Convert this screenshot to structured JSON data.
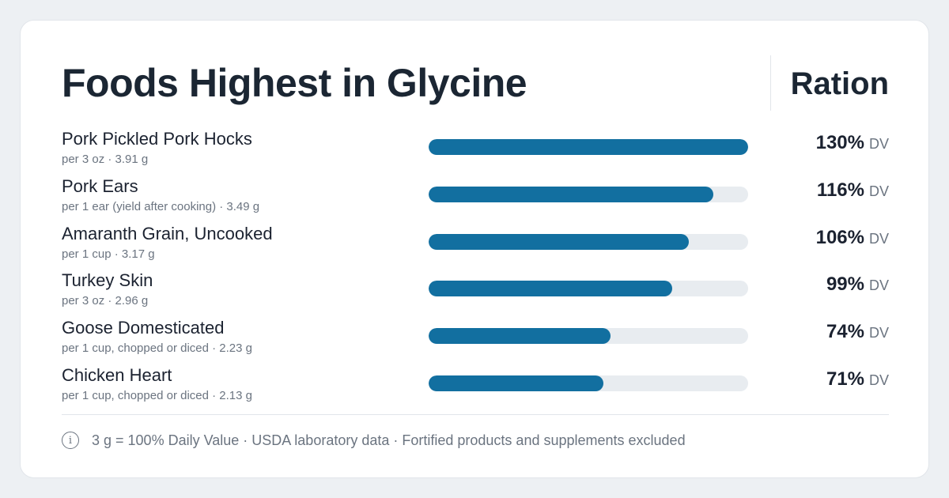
{
  "title": "Foods Highest in Glycine",
  "brand": "Ration",
  "chart_data": {
    "type": "bar",
    "orientation": "horizontal",
    "max_percent": 130,
    "unit_label": "DV",
    "items": [
      {
        "name": "Pork Pickled Pork Hocks",
        "serving": "per 3 oz · 3.91 g",
        "percent": 130,
        "percent_label": "130%"
      },
      {
        "name": "Pork Ears",
        "serving": "per 1 ear (yield after cooking) · 3.49 g",
        "percent": 116,
        "percent_label": "116%"
      },
      {
        "name": "Amaranth Grain, Uncooked",
        "serving": "per 1 cup · 3.17 g",
        "percent": 106,
        "percent_label": "106%"
      },
      {
        "name": "Turkey Skin",
        "serving": "per 3 oz · 2.96 g",
        "percent": 99,
        "percent_label": "99%"
      },
      {
        "name": "Goose Domesticated",
        "serving": "per 1 cup, chopped or diced · 2.23 g",
        "percent": 74,
        "percent_label": "74%"
      },
      {
        "name": "Chicken Heart",
        "serving": "per 1 cup, chopped or diced · 2.13 g",
        "percent": 71,
        "percent_label": "71%"
      }
    ]
  },
  "footer": {
    "icon": "info-icon",
    "text": "3 g = 100% Daily Value · USDA laboratory data · Fortified products and supplements excluded"
  },
  "colors": {
    "bar_fill": "#126fa0",
    "bar_track": "#e8ecf0",
    "background": "#edf0f3",
    "card": "#ffffff"
  }
}
